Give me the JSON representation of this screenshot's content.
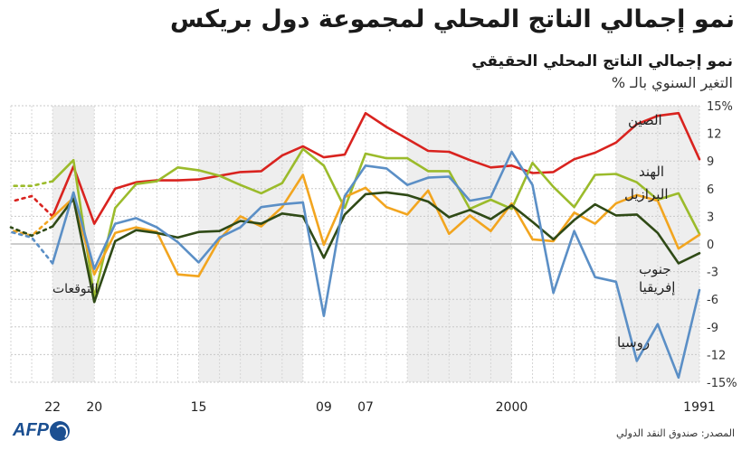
{
  "title": "نمو إجمالي الناتج المحلي لمجموعة دول بريكس",
  "chart_data": {
    "type": "line",
    "title": "نمو إجمالي الناتج المحلي الحقيقي",
    "ylabel": "التغير السنوي بالـ %",
    "ylim": [
      -15,
      15
    ],
    "y_ticks": [
      15,
      12,
      9,
      6,
      3,
      0,
      -3,
      -6,
      -9,
      -12,
      -15
    ],
    "y_tick_labels": [
      "15%",
      "12",
      "9",
      "6",
      "3",
      "0",
      "-3",
      "-6",
      "-9",
      "-12",
      "-15%"
    ],
    "x_range": [
      1991,
      2024
    ],
    "x_direction": "right-to-left",
    "x_ticks": [
      1991,
      2000,
      2007,
      2009,
      2015,
      2020,
      2022
    ],
    "x_tick_labels": [
      "1991",
      "2000",
      "07",
      "09",
      "15",
      "20",
      "22"
    ],
    "shaded_bands": [
      [
        1991,
        1995
      ],
      [
        2000,
        2005
      ],
      [
        2010,
        2015
      ],
      [
        2020,
        2022
      ]
    ],
    "forecast_years": [
      2023,
      2024
    ],
    "forecast_label": "التوقعات",
    "series": [
      {
        "name": "الصين",
        "color": "#d9231f",
        "x": [
          1991,
          1992,
          1993,
          1994,
          1995,
          1996,
          1997,
          1998,
          1999,
          2000,
          2001,
          2002,
          2003,
          2004,
          2005,
          2006,
          2007,
          2008,
          2009,
          2010,
          2011,
          2012,
          2013,
          2014,
          2015,
          2016,
          2017,
          2018,
          2019,
          2020,
          2021,
          2022,
          2023,
          2024
        ],
        "values": [
          9.2,
          14.2,
          13.9,
          13.0,
          11.0,
          9.9,
          9.2,
          7.8,
          7.7,
          8.5,
          8.3,
          9.1,
          10.0,
          10.1,
          11.4,
          12.7,
          14.2,
          9.7,
          9.4,
          10.6,
          9.6,
          7.9,
          7.8,
          7.4,
          7.0,
          6.9,
          6.9,
          6.7,
          6.0,
          2.2,
          8.4,
          3.0,
          5.2,
          4.6
        ],
        "forecast_from": 2023
      },
      {
        "name": "الهند",
        "color": "#9bbb2b",
        "x": [
          1991,
          1992,
          1993,
          1994,
          1995,
          1996,
          1997,
          1998,
          1999,
          2000,
          2001,
          2002,
          2003,
          2004,
          2005,
          2006,
          2007,
          2008,
          2009,
          2010,
          2011,
          2012,
          2013,
          2014,
          2015,
          2016,
          2017,
          2018,
          2019,
          2020,
          2021,
          2022,
          2023,
          2024
        ],
        "values": [
          1.1,
          5.5,
          4.8,
          6.7,
          7.6,
          7.5,
          4.0,
          6.2,
          8.8,
          3.8,
          4.8,
          3.8,
          7.9,
          7.9,
          9.3,
          9.3,
          9.8,
          3.9,
          8.5,
          10.3,
          6.6,
          5.5,
          6.4,
          7.4,
          8.0,
          8.3,
          6.8,
          6.5,
          3.9,
          -5.8,
          9.1,
          6.8,
          6.3,
          6.3
        ],
        "forecast_from": 2023
      },
      {
        "name": "البرازيل",
        "color": "#f2a51f",
        "x": [
          1991,
          1992,
          1993,
          1994,
          1995,
          1996,
          1997,
          1998,
          1999,
          2000,
          2001,
          2002,
          2003,
          2004,
          2005,
          2006,
          2007,
          2008,
          2009,
          2010,
          2011,
          2012,
          2013,
          2014,
          2015,
          2016,
          2017,
          2018,
          2019,
          2020,
          2021,
          2022,
          2023,
          2024
        ],
        "values": [
          1.0,
          -0.5,
          4.7,
          5.3,
          4.4,
          2.2,
          3.4,
          0.3,
          0.5,
          4.4,
          1.4,
          3.1,
          1.1,
          5.8,
          3.2,
          4.0,
          6.1,
          5.1,
          -0.1,
          7.5,
          4.0,
          1.9,
          3.0,
          0.5,
          -3.5,
          -3.3,
          1.3,
          1.8,
          1.2,
          -3.3,
          5.0,
          2.9,
          0.9,
          1.5
        ],
        "forecast_from": 2023
      },
      {
        "name": "جنوب إفريقيا",
        "color": "#2f4a16",
        "x": [
          1991,
          1992,
          1993,
          1994,
          1995,
          1996,
          1997,
          1998,
          1999,
          2000,
          2001,
          2002,
          2003,
          2004,
          2005,
          2006,
          2007,
          2008,
          2009,
          2010,
          2011,
          2012,
          2013,
          2014,
          2015,
          2016,
          2017,
          2018,
          2019,
          2020,
          2021,
          2022,
          2023,
          2024
        ],
        "values": [
          -1.0,
          -2.1,
          1.2,
          3.2,
          3.1,
          4.3,
          2.6,
          0.5,
          2.4,
          4.2,
          2.7,
          3.7,
          2.9,
          4.6,
          5.3,
          5.6,
          5.4,
          3.2,
          -1.5,
          3.0,
          3.3,
          2.2,
          2.5,
          1.4,
          1.3,
          0.7,
          1.2,
          1.5,
          0.3,
          -6.3,
          4.9,
          1.9,
          0.9,
          1.8
        ],
        "forecast_from": 2023
      },
      {
        "name": "روسيا",
        "color": "#5b8fc6",
        "x": [
          1991,
          1992,
          1993,
          1994,
          1995,
          1996,
          1997,
          1998,
          1999,
          2000,
          2001,
          2002,
          2003,
          2004,
          2005,
          2006,
          2007,
          2008,
          2009,
          2010,
          2011,
          2012,
          2013,
          2014,
          2015,
          2016,
          2017,
          2018,
          2019,
          2020,
          2021,
          2022,
          2023,
          2024
        ],
        "values": [
          -5.0,
          -14.5,
          -8.7,
          -12.7,
          -4.1,
          -3.6,
          1.4,
          -5.3,
          6.4,
          10.0,
          5.1,
          4.7,
          7.3,
          7.2,
          6.4,
          8.2,
          8.5,
          5.2,
          -7.8,
          4.5,
          4.3,
          4.0,
          1.8,
          0.7,
          -2.0,
          0.2,
          1.8,
          2.8,
          2.2,
          -2.7,
          5.6,
          -2.1,
          0.7,
          1.3
        ],
        "forecast_from": 2023
      }
    ],
    "series_labels_lines": {
      "الصين": [
        "الصين"
      ],
      "الهند": [
        "الهند"
      ],
      "البرازيل": [
        "البرازيل"
      ],
      "جنوب إفريقيا": [
        "جنوب",
        "إفريقيا"
      ],
      "روسيا": [
        "روسيا"
      ]
    }
  },
  "source": "المصدر: صندوق النقد الدولي",
  "logo_text": "AFP"
}
